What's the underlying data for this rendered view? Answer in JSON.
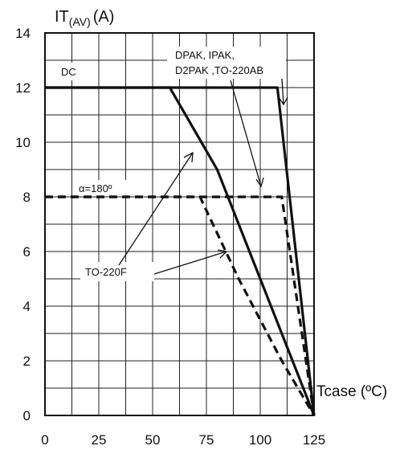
{
  "chart_data": {
    "type": "line",
    "ylabel": {
      "main": "IT",
      "sub": "(AV)",
      "unit": "(A)"
    },
    "xlabel": "Tcase (ºC)",
    "xlim": [
      0,
      125
    ],
    "ylim": [
      0,
      14
    ],
    "x_ticks": [
      0,
      25,
      50,
      75,
      100,
      125
    ],
    "y_ticks": [
      0,
      2,
      4,
      6,
      8,
      10,
      12,
      14
    ],
    "grid": true,
    "series": [
      {
        "name": "DC",
        "package": "TO-220F",
        "style": "solid",
        "points": [
          [
            0,
            12
          ],
          [
            58,
            12
          ],
          [
            80,
            9
          ],
          [
            100,
            5
          ],
          [
            125,
            0
          ]
        ]
      },
      {
        "name": "DC",
        "package": "DPAK, IPAK, D2PAK, TO-220AB",
        "style": "solid",
        "points": [
          [
            0,
            12
          ],
          [
            108,
            12
          ],
          [
            125,
            0
          ]
        ]
      },
      {
        "name": "α=180º",
        "package": "TO-220F",
        "style": "dashed",
        "points": [
          [
            0,
            8
          ],
          [
            72,
            8
          ],
          [
            90,
            5
          ],
          [
            110,
            2
          ],
          [
            125,
            0
          ]
        ]
      },
      {
        "name": "α=180º",
        "package": "DPAK, IPAK, D2PAK, TO-220AB",
        "style": "dashed",
        "points": [
          [
            0,
            8
          ],
          [
            110,
            8
          ],
          [
            125,
            0
          ]
        ]
      }
    ],
    "annotations": {
      "dc": "DC",
      "alpha": "α=180º",
      "pkg_line1": "DPAK,  IPAK,",
      "pkg_line2": "D2PAK ,TO-220AB",
      "to220f": "TO-220F"
    }
  }
}
